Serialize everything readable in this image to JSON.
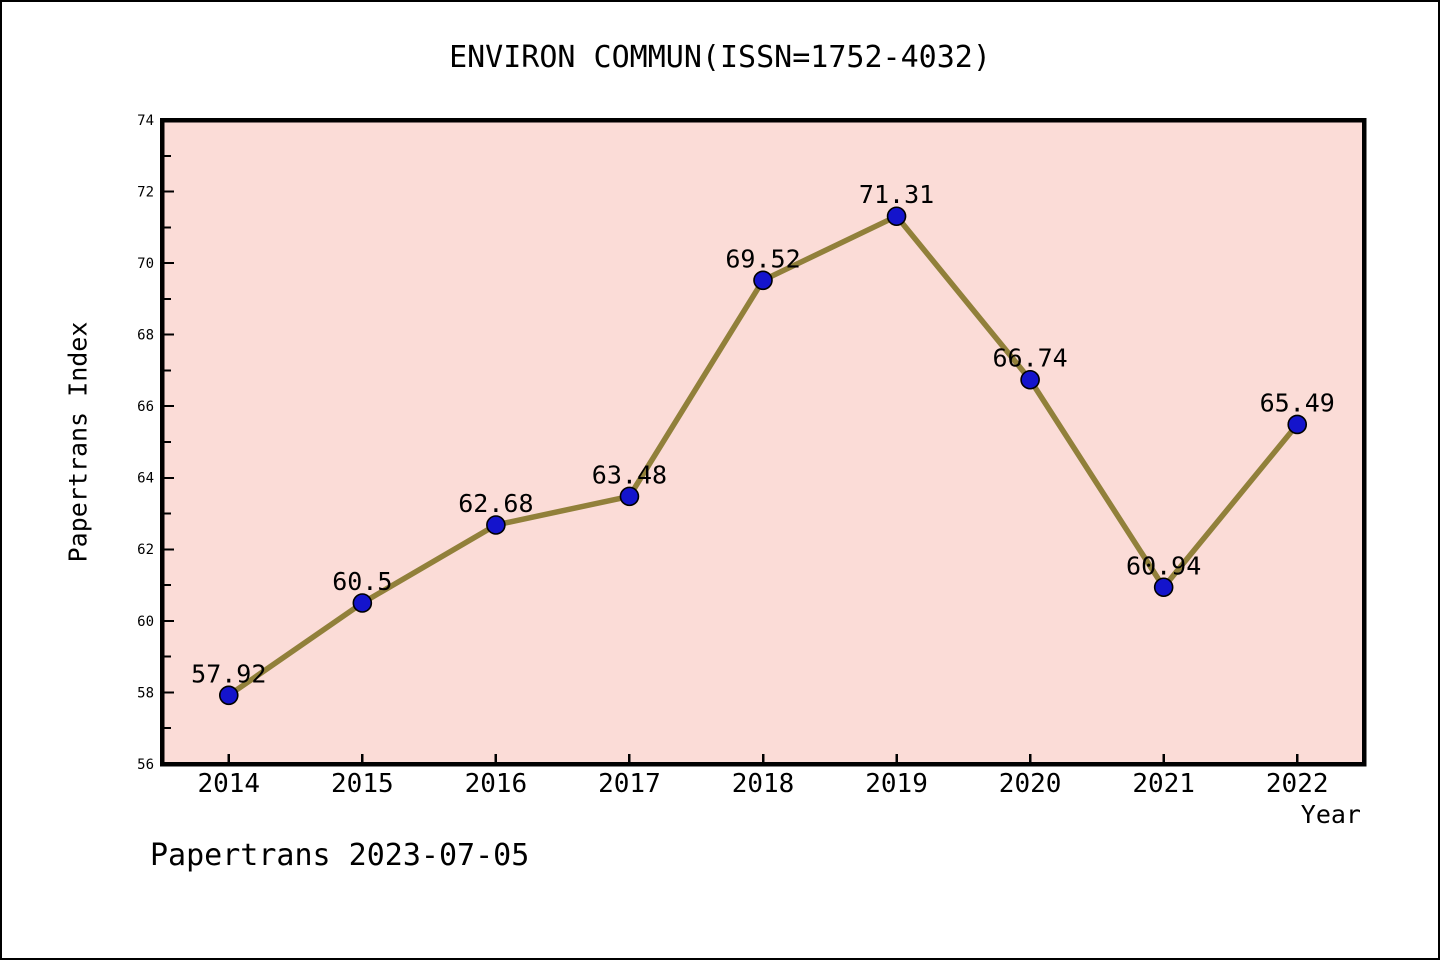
{
  "footer": "Papertrans 2023-07-05",
  "chart_data": {
    "type": "line",
    "title": "ENVIRON COMMUN(ISSN=1752-4032)",
    "xlabel": "Year",
    "ylabel": "Papertrans Index",
    "x": [
      2014,
      2015,
      2016,
      2017,
      2018,
      2019,
      2020,
      2021,
      2022
    ],
    "values": [
      57.92,
      60.5,
      62.68,
      63.48,
      69.52,
      71.31,
      66.74,
      60.94,
      65.49
    ],
    "point_labels": [
      "57.92",
      "60.5",
      "62.68",
      "63.48",
      "69.52",
      "71.31",
      "66.74",
      "60.94",
      "65.49"
    ],
    "xlim": [
      2013.5,
      2022.5
    ],
    "ylim": [
      56,
      74
    ],
    "x_ticks": [
      2014,
      2015,
      2016,
      2017,
      2018,
      2019,
      2020,
      2021,
      2022
    ],
    "y_major_ticks": [
      56,
      58,
      60,
      62,
      64,
      66,
      68,
      70,
      72,
      74
    ],
    "y_minor_ticks": [
      57,
      59,
      61,
      63,
      65,
      67,
      69,
      71,
      73
    ],
    "grid": false,
    "legend_position": "none",
    "colors": {
      "line": "#91803a",
      "marker": "#1414cc",
      "marker_edge": "#000000",
      "plot_bg": "#fbdcd7",
      "axis": "#000000",
      "text": "#000000",
      "page_bg": "#ffffff"
    }
  }
}
